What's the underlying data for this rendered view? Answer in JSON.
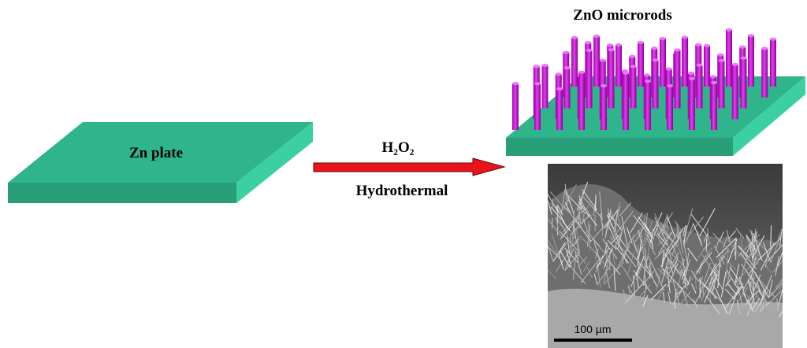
{
  "left_label": "Zn plate",
  "arrow_top": "H₂O₂",
  "arrow_bottom": "Hydrothermal",
  "right_title": "ZnO microrods",
  "scale_bar": "100 µm"
}
